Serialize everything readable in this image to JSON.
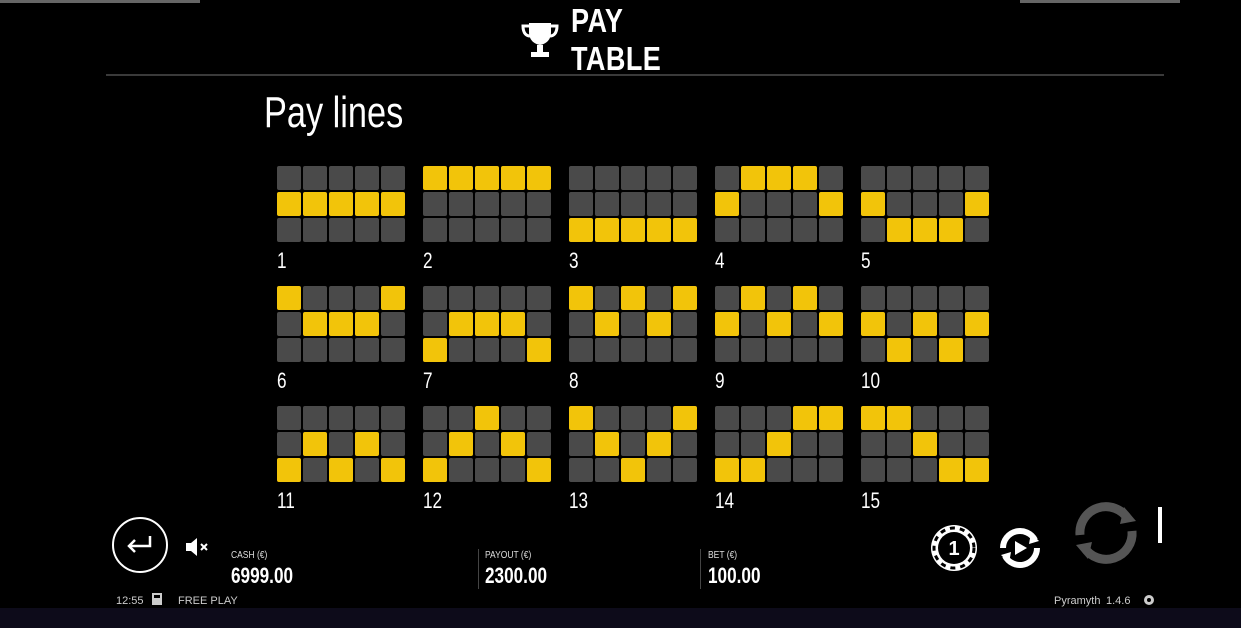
{
  "header": {
    "title": "PAY TABLE",
    "icon": "trophy-icon"
  },
  "section_title": "Pay lines",
  "paylines": [
    {
      "number": "1",
      "rows": [
        [
          0,
          0,
          0,
          0,
          0
        ],
        [
          1,
          1,
          1,
          1,
          1
        ],
        [
          0,
          0,
          0,
          0,
          0
        ]
      ]
    },
    {
      "number": "2",
      "rows": [
        [
          1,
          1,
          1,
          1,
          1
        ],
        [
          0,
          0,
          0,
          0,
          0
        ],
        [
          0,
          0,
          0,
          0,
          0
        ]
      ]
    },
    {
      "number": "3",
      "rows": [
        [
          0,
          0,
          0,
          0,
          0
        ],
        [
          0,
          0,
          0,
          0,
          0
        ],
        [
          1,
          1,
          1,
          1,
          1
        ]
      ]
    },
    {
      "number": "4",
      "rows": [
        [
          0,
          1,
          1,
          1,
          0
        ],
        [
          1,
          0,
          0,
          0,
          1
        ],
        [
          0,
          0,
          0,
          0,
          0
        ]
      ]
    },
    {
      "number": "5",
      "rows": [
        [
          0,
          0,
          0,
          0,
          0
        ],
        [
          1,
          0,
          0,
          0,
          1
        ],
        [
          0,
          1,
          1,
          1,
          0
        ]
      ]
    },
    {
      "number": "6",
      "rows": [
        [
          1,
          0,
          0,
          0,
          1
        ],
        [
          0,
          1,
          1,
          1,
          0
        ],
        [
          0,
          0,
          0,
          0,
          0
        ]
      ]
    },
    {
      "number": "7",
      "rows": [
        [
          0,
          0,
          0,
          0,
          0
        ],
        [
          0,
          1,
          1,
          1,
          0
        ],
        [
          1,
          0,
          0,
          0,
          1
        ]
      ]
    },
    {
      "number": "8",
      "rows": [
        [
          1,
          0,
          1,
          0,
          1
        ],
        [
          0,
          1,
          0,
          1,
          0
        ],
        [
          0,
          0,
          0,
          0,
          0
        ]
      ]
    },
    {
      "number": "9",
      "rows": [
        [
          0,
          1,
          0,
          1,
          0
        ],
        [
          1,
          0,
          1,
          0,
          1
        ],
        [
          0,
          0,
          0,
          0,
          0
        ]
      ]
    },
    {
      "number": "10",
      "rows": [
        [
          0,
          0,
          0,
          0,
          0
        ],
        [
          1,
          0,
          1,
          0,
          1
        ],
        [
          0,
          1,
          0,
          1,
          0
        ]
      ]
    },
    {
      "number": "11",
      "rows": [
        [
          0,
          0,
          0,
          0,
          0
        ],
        [
          0,
          1,
          0,
          1,
          0
        ],
        [
          1,
          0,
          1,
          0,
          1
        ]
      ]
    },
    {
      "number": "12",
      "rows": [
        [
          0,
          0,
          1,
          0,
          0
        ],
        [
          0,
          1,
          0,
          1,
          0
        ],
        [
          1,
          0,
          0,
          0,
          1
        ]
      ]
    },
    {
      "number": "13",
      "rows": [
        [
          1,
          0,
          0,
          0,
          1
        ],
        [
          0,
          1,
          0,
          1,
          0
        ],
        [
          0,
          0,
          1,
          0,
          0
        ]
      ]
    },
    {
      "number": "14",
      "rows": [
        [
          0,
          0,
          0,
          1,
          1
        ],
        [
          0,
          0,
          1,
          0,
          0
        ],
        [
          1,
          1,
          0,
          0,
          0
        ]
      ]
    },
    {
      "number": "15",
      "rows": [
        [
          1,
          1,
          0,
          0,
          0
        ],
        [
          0,
          0,
          1,
          0,
          0
        ],
        [
          0,
          0,
          0,
          1,
          1
        ]
      ]
    }
  ],
  "status": {
    "cash_label": "CASH (€)",
    "cash_value": "6999.00",
    "payout_label": "PAYOUT (€)",
    "payout_value": "2300.00",
    "bet_label": "BET (€)",
    "bet_value": "100.00"
  },
  "footer": {
    "time": "12:55",
    "mode": "FREE PLAY",
    "game_name": "Pyramyth",
    "version": "1.4.6"
  },
  "colors": {
    "active_cell": "#f2c40a",
    "inactive_cell": "#4a4a4a",
    "background": "#000000"
  },
  "icons": [
    "trophy-icon",
    "back-arrow-icon",
    "mute-icon",
    "coin-value-icon",
    "autoplay-icon",
    "spin-icon",
    "book-icon",
    "settings-icon"
  ]
}
